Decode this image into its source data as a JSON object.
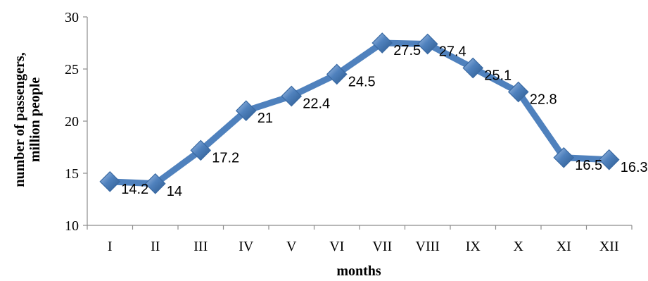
{
  "chart_data": {
    "type": "line",
    "categories": [
      "I",
      "II",
      "III",
      "IV",
      "V",
      "VI",
      "VII",
      "VIII",
      "IX",
      "X",
      "XI",
      "XII"
    ],
    "series": [
      {
        "values": [
          14.2,
          14,
          17.2,
          21,
          22.4,
          24.5,
          27.5,
          27.4,
          25.1,
          22.8,
          16.5,
          16.3
        ],
        "data_labels": [
          "14.2",
          "14",
          "17.2",
          "21",
          "22.4",
          "24.5",
          "27.5",
          "27.4",
          "25.1",
          "22.8",
          "16.5",
          "16.3"
        ],
        "color": "#4F81BD",
        "marker": "diamond"
      }
    ],
    "xlabel": "months",
    "ylabel_lines": [
      "number of passengers,",
      "million people"
    ],
    "ylim": [
      10,
      30
    ],
    "yticks": [
      10,
      15,
      20,
      25,
      30
    ],
    "ytick_labels": [
      "10",
      "15",
      "20",
      "25",
      "30"
    ],
    "grid": false,
    "legend": "none"
  }
}
